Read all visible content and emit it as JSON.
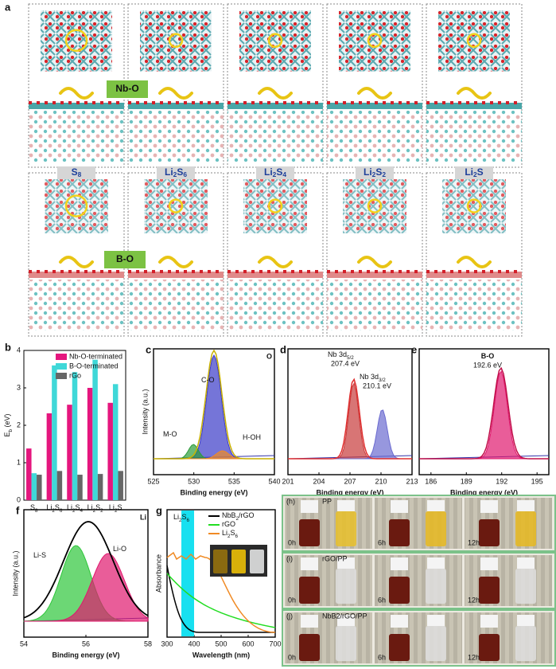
{
  "panel_a": {
    "label": "a",
    "rows": [
      "Nb-O",
      "B-O"
    ],
    "species": [
      [
        "S",
        "8"
      ],
      [
        "Li",
        "2",
        "S",
        "6"
      ],
      [
        "Li",
        "2",
        "S",
        "4"
      ],
      [
        "Li",
        "2",
        "S",
        "2"
      ],
      [
        "Li",
        "2",
        "S"
      ]
    ]
  },
  "chart_data": {
    "type": "bar",
    "label": "b",
    "y_label": [
      "E",
      "b",
      " (eV)"
    ],
    "categories": [
      [
        "S",
        "8"
      ],
      [
        "Li",
        "2",
        "S",
        "6"
      ],
      [
        "Li",
        "2",
        "S",
        "4"
      ],
      [
        "Li",
        "2",
        "S",
        "2"
      ],
      [
        "Li",
        "2",
        "S"
      ]
    ],
    "series": [
      {
        "name": "Nb-O-terminated",
        "color": "#e5167e",
        "values": [
          1.38,
          2.32,
          2.55,
          3.0,
          2.6
        ]
      },
      {
        "name": "B-O-terminated",
        "color": "#3fd8d8",
        "values": [
          0.72,
          3.6,
          3.42,
          3.75,
          3.1
        ]
      },
      {
        "name": "rGo",
        "color": "#666666",
        "values": [
          0.68,
          0.78,
          0.68,
          0.7,
          0.78
        ]
      }
    ],
    "ylim": [
      0,
      4
    ],
    "yticks": [
      0,
      1,
      2,
      3,
      4
    ],
    "legend": "upper left"
  },
  "spectra": [
    {
      "label": "c",
      "element": "O",
      "xlim": [
        525,
        540
      ],
      "xticks": [
        525,
        530,
        535,
        540
      ],
      "x_label": "Binding energy (eV)",
      "y_label": "Intensity (a.u.)",
      "peaks": [
        {
          "name": [
            "C-O"
          ]
        },
        {
          "name": [
            "M-O"
          ]
        },
        {
          "name": [
            "H-OH"
          ]
        }
      ]
    },
    {
      "label": "d",
      "xlim": [
        201,
        213
      ],
      "xticks": [
        201,
        204,
        207,
        210,
        213
      ],
      "x_label": "Binding energy (eV)",
      "peaks": [
        {
          "name": [
            "Nb 3d",
            "5/2"
          ],
          "energy": "207.4 eV"
        },
        {
          "name": [
            "Nb 3d",
            "3/2"
          ],
          "energy": "210.1 eV"
        }
      ]
    },
    {
      "label": "e",
      "xlim": [
        185,
        196
      ],
      "xticks": [
        186,
        189,
        192,
        195
      ],
      "x_label": "Binding energy (eV)",
      "peaks": [
        {
          "name": [
            "B-O"
          ],
          "energy": "192.6 eV"
        }
      ]
    },
    {
      "label": "f",
      "element": "Li",
      "xlim": [
        54,
        58
      ],
      "xticks": [
        54,
        56,
        58
      ],
      "x_label": "Binding energy (eV)",
      "y_label": "Intensity (a.u.)",
      "peaks": [
        {
          "name": [
            "Li-S"
          ]
        },
        {
          "name": [
            "Li-O"
          ]
        }
      ]
    }
  ],
  "uv": {
    "label": "g",
    "xlim": [
      300,
      700
    ],
    "xticks": [
      300,
      400,
      500,
      600,
      700
    ],
    "x_label": "Wavelength (nm)",
    "y_label": "Absorbance",
    "annotation": [
      "Li",
      "2",
      "S",
      "6"
    ],
    "legend": [
      {
        "name": [
          "NbB",
          "2",
          "/rGO"
        ],
        "color": "#000000"
      },
      {
        "name": [
          "rGO"
        ],
        "color": "#22dd22"
      },
      {
        "name": [
          "Li",
          "2",
          "S",
          "6"
        ],
        "color": "#f08a24"
      }
    ]
  },
  "photos": {
    "rows": [
      {
        "label": "(h)",
        "sample": "PP"
      },
      {
        "label": "(i)",
        "sample": "rGO/PP"
      },
      {
        "label": "(j)",
        "sample": "NbB2/rGO/PP"
      }
    ],
    "times": [
      "0h",
      "6h",
      "12h"
    ]
  }
}
